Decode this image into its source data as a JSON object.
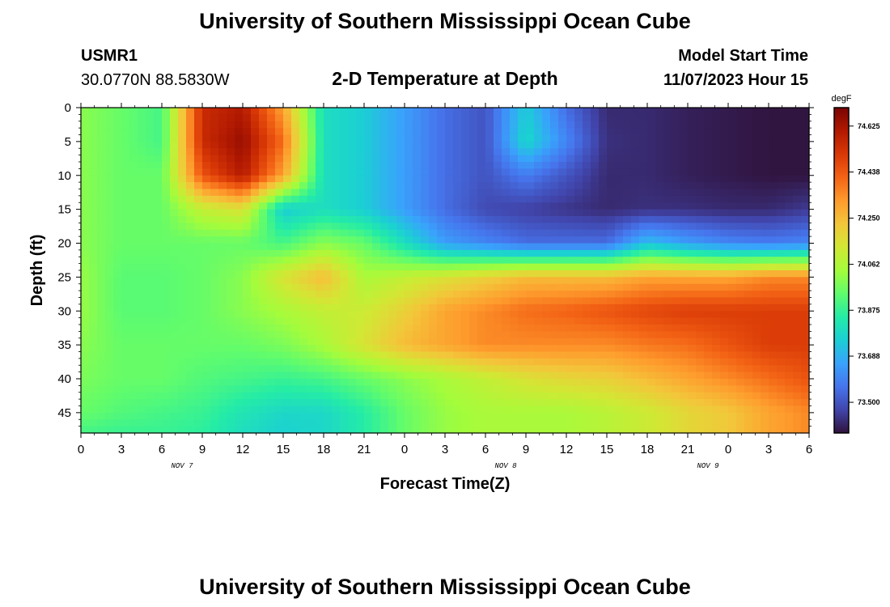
{
  "header": {
    "title": "University of Southern Mississippi Ocean Cube",
    "station_id": "USMR1",
    "coordinates": "30.0770N  88.5830W",
    "plot_title": "2-D Temperature at Depth",
    "model_start_label": "Model Start Time",
    "model_start_value": "11/07/2023 Hour 15"
  },
  "footer": {
    "title": "University of Southern Mississippi Ocean Cube"
  },
  "colors": {
    "cmap": [
      "#30123b",
      "#4145ab",
      "#4675ed",
      "#39a2fc",
      "#1bcfd4",
      "#24eca6",
      "#61fc6c",
      "#a4fc3b",
      "#d1e834",
      "#f3c63a",
      "#fe9b2d",
      "#f36315",
      "#d93806",
      "#b11901",
      "#7a0403"
    ]
  },
  "chart_data": {
    "type": "heatmap",
    "title": "2-D Temperature at Depth",
    "xlabel": "Forecast Time(Z)",
    "ylabel": "Depth (ft)",
    "x_ticks": [
      "0",
      "3",
      "6",
      "9",
      "12",
      "15",
      "18",
      "21",
      "0",
      "3",
      "6",
      "9",
      "12",
      "15",
      "18",
      "21",
      "0",
      "3",
      "6"
    ],
    "x_date_labels": [
      {
        "label": "NOV 7",
        "tick_index": 2.5
      },
      {
        "label": "NOV 8",
        "tick_index": 10.5
      },
      {
        "label": "NOV 9",
        "tick_index": 15.5
      }
    ],
    "y_ticks": [
      0,
      5,
      10,
      15,
      20,
      25,
      30,
      35,
      40,
      45
    ],
    "ylim": [
      0,
      48
    ],
    "x_hours": [
      0,
      54
    ],
    "colorbar": {
      "unit": "degF",
      "vmin": 73.375,
      "vmax": 74.7,
      "labels": [
        "74.625",
        "74.438",
        "74.250",
        "74.062",
        "73.875",
        "73.688",
        "73.500"
      ]
    },
    "grid_hours": [
      0,
      3,
      6,
      9,
      12,
      15,
      18,
      21,
      24,
      27,
      30,
      33,
      36,
      39,
      42,
      45,
      48,
      51,
      54
    ],
    "grid_depths": [
      0,
      5,
      10,
      15,
      20,
      25,
      30,
      35,
      40,
      45,
      48
    ],
    "values": [
      [
        74.0,
        73.95,
        73.9,
        74.55,
        74.6,
        74.3,
        73.8,
        73.75,
        73.65,
        73.55,
        73.5,
        73.75,
        73.55,
        73.42,
        73.42,
        73.4,
        73.39,
        73.38,
        73.38
      ],
      [
        74.0,
        73.95,
        73.9,
        74.55,
        74.65,
        74.4,
        73.8,
        73.75,
        73.65,
        73.55,
        73.5,
        73.78,
        73.6,
        73.43,
        73.42,
        73.4,
        73.39,
        73.38,
        73.38
      ],
      [
        74.0,
        73.95,
        73.95,
        74.45,
        74.6,
        74.3,
        73.8,
        73.75,
        73.65,
        73.55,
        73.5,
        73.58,
        73.5,
        73.42,
        73.42,
        73.4,
        73.39,
        73.38,
        73.38
      ],
      [
        74.0,
        73.95,
        73.95,
        74.1,
        74.15,
        73.75,
        73.8,
        73.75,
        73.65,
        73.55,
        73.48,
        73.46,
        73.44,
        73.42,
        73.43,
        73.43,
        73.42,
        73.42,
        73.45
      ],
      [
        74.0,
        73.95,
        73.95,
        73.95,
        73.95,
        73.9,
        74.0,
        73.95,
        73.8,
        73.65,
        73.6,
        73.55,
        73.55,
        73.55,
        73.72,
        73.65,
        73.6,
        73.58,
        73.6
      ],
      [
        74.02,
        73.93,
        73.93,
        73.95,
        74.0,
        74.15,
        74.25,
        74.05,
        74.1,
        74.15,
        74.2,
        74.25,
        74.25,
        74.25,
        74.3,
        74.3,
        74.3,
        74.35,
        74.35
      ],
      [
        74.02,
        73.93,
        73.93,
        73.95,
        74.0,
        74.05,
        74.1,
        74.12,
        74.2,
        74.3,
        74.35,
        74.4,
        74.42,
        74.45,
        74.48,
        74.5,
        74.5,
        74.5,
        74.5
      ],
      [
        74.0,
        73.95,
        73.95,
        73.95,
        73.95,
        73.98,
        74.05,
        74.15,
        74.25,
        74.3,
        74.35,
        74.35,
        74.35,
        74.35,
        74.38,
        74.4,
        74.45,
        74.5,
        74.5
      ],
      [
        73.98,
        73.95,
        73.95,
        73.92,
        73.9,
        73.88,
        73.9,
        73.95,
        74.0,
        74.05,
        74.1,
        74.15,
        74.18,
        74.2,
        74.25,
        74.3,
        74.35,
        74.4,
        74.45
      ],
      [
        73.95,
        73.92,
        73.9,
        73.88,
        73.82,
        73.78,
        73.78,
        73.85,
        73.95,
        74.02,
        74.05,
        74.05,
        74.05,
        74.08,
        74.12,
        74.18,
        74.22,
        74.3,
        74.35
      ],
      [
        73.9,
        73.88,
        73.88,
        73.86,
        73.8,
        73.76,
        73.78,
        73.85,
        73.95,
        74.02,
        74.05,
        74.05,
        74.05,
        74.08,
        74.12,
        74.18,
        74.22,
        74.3,
        74.35
      ]
    ]
  }
}
